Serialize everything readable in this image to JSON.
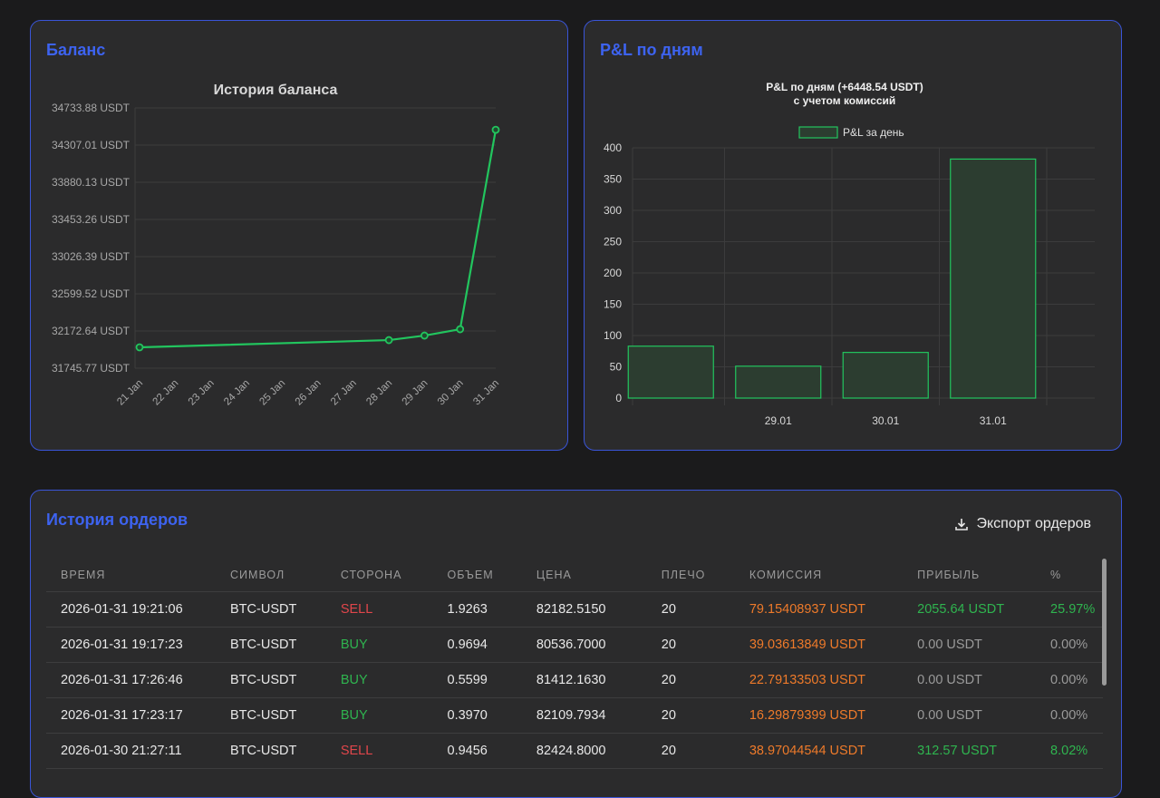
{
  "balance": {
    "title": "Баланс",
    "chart_data": {
      "type": "line",
      "title": "История баланса",
      "y_ticks": [
        "34733.88 USDT",
        "34307.01 USDT",
        "33880.13 USDT",
        "33453.26 USDT",
        "33026.39 USDT",
        "32599.52 USDT",
        "32172.64 USDT",
        "31745.77 USDT"
      ],
      "ylim": [
        31745.77,
        34733.88
      ],
      "x_ticks": [
        "21 Jan",
        "22 Jan",
        "23 Jan",
        "24 Jan",
        "25 Jan",
        "26 Jan",
        "27 Jan",
        "28 Jan",
        "29 Jan",
        "30 Jan",
        "31 Jan"
      ],
      "points": [
        {
          "x": "21 Jan",
          "y": 31985
        },
        {
          "x": "28 Jan",
          "y": 32068
        },
        {
          "x": "29 Jan",
          "y": 32120
        },
        {
          "x": "30 Jan",
          "y": 32193
        },
        {
          "x": "31 Jan",
          "y": 34483
        }
      ],
      "color": "#22c55e",
      "grid": true
    }
  },
  "pnl": {
    "title": "P&L по дням",
    "chart_data": {
      "type": "bar",
      "title": [
        "P&L по дням (+6448.54 USDT)",
        "с учетом комиссий"
      ],
      "legend": {
        "label": "P&L за день",
        "position": "top"
      },
      "categories": [
        "",
        "29.01",
        "30.01",
        "31.01"
      ],
      "values": [
        83,
        51,
        73,
        382
      ],
      "ylim": [
        0,
        400
      ],
      "y_ticks": [
        "0",
        "50",
        "100",
        "150",
        "200",
        "250",
        "300",
        "350",
        "400"
      ],
      "color": "#22c55e",
      "grid": true
    }
  },
  "orders": {
    "title": "История ордеров",
    "export_label": "Экспорт ордеров",
    "columns": [
      "ВРЕМЯ",
      "СИМВОЛ",
      "СТОРОНА",
      "ОБЪЕМ",
      "ЦЕНА",
      "ПЛЕЧО",
      "КОМИССИЯ",
      "ПРИБЫЛЬ",
      "%"
    ],
    "rows": [
      [
        "2026-01-31 19:21:06",
        "BTC-USDT",
        "SELL",
        "1.9263",
        "82182.5150",
        "20",
        "79.15408937 USDT",
        "2055.64 USDT",
        "25.97%"
      ],
      [
        "2026-01-31 19:17:23",
        "BTC-USDT",
        "BUY",
        "0.9694",
        "80536.7000",
        "20",
        "39.03613849 USDT",
        "0.00 USDT",
        "0.00%"
      ],
      [
        "2026-01-31 17:26:46",
        "BTC-USDT",
        "BUY",
        "0.5599",
        "81412.1630",
        "20",
        "22.79133503 USDT",
        "0.00 USDT",
        "0.00%"
      ],
      [
        "2026-01-31 17:23:17",
        "BTC-USDT",
        "BUY",
        "0.3970",
        "82109.7934",
        "20",
        "16.29879399 USDT",
        "0.00 USDT",
        "0.00%"
      ],
      [
        "2026-01-30 21:27:11",
        "BTC-USDT",
        "SELL",
        "0.9456",
        "82424.8000",
        "20",
        "38.97044544 USDT",
        "312.57 USDT",
        "8.02%"
      ]
    ]
  }
}
